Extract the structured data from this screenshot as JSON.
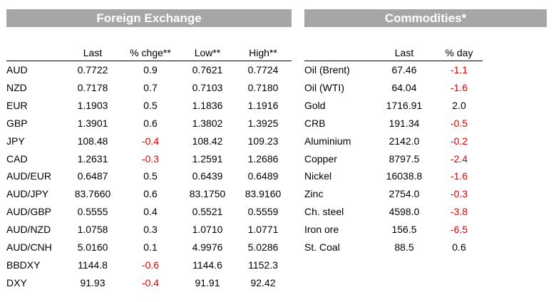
{
  "fx": {
    "title": "Foreign Exchange",
    "headers": [
      "",
      "Last",
      "% chge**",
      "Low**",
      "High**"
    ],
    "rows": [
      {
        "name": "AUD",
        "last": "0.7722",
        "chg": "0.9",
        "low": "0.7621",
        "high": "0.7724"
      },
      {
        "name": "NZD",
        "last": "0.7178",
        "chg": "0.7",
        "low": "0.7103",
        "high": "0.7180"
      },
      {
        "name": "EUR",
        "last": "1.1903",
        "chg": "0.5",
        "low": "1.1836",
        "high": "1.1916"
      },
      {
        "name": "GBP",
        "last": "1.3901",
        "chg": "0.6",
        "low": "1.3802",
        "high": "1.3925"
      },
      {
        "name": "JPY",
        "last": "108.48",
        "chg": "-0.4",
        "low": "108.42",
        "high": "109.23"
      },
      {
        "name": "CAD",
        "last": "1.2631",
        "chg": "-0.3",
        "low": "1.2591",
        "high": "1.2686"
      },
      {
        "name": "AUD/EUR",
        "last": "0.6487",
        "chg": "0.5",
        "low": "0.6439",
        "high": "0.6489"
      },
      {
        "name": "AUD/JPY",
        "last": "83.7660",
        "chg": "0.6",
        "low": "83.1750",
        "high": "83.9160"
      },
      {
        "name": "AUD/GBP",
        "last": "0.5555",
        "chg": "0.4",
        "low": "0.5521",
        "high": "0.5559"
      },
      {
        "name": "AUD/NZD",
        "last": "1.0758",
        "chg": "0.3",
        "low": "1.0710",
        "high": "1.0771"
      },
      {
        "name": "AUD/CNH",
        "last": "5.0160",
        "chg": "0.1",
        "low": "4.9976",
        "high": "5.0286"
      },
      {
        "name": "BBDXY",
        "last": "1144.8",
        "chg": "-0.6",
        "low": "1144.6",
        "high": "1152.3"
      },
      {
        "name": "DXY",
        "last": "91.93",
        "chg": "-0.4",
        "low": "91.91",
        "high": "92.42"
      }
    ]
  },
  "commodities": {
    "title": "Commodities*",
    "headers": [
      "",
      "Last",
      "% day"
    ],
    "rows": [
      {
        "name": "Oil (Brent)",
        "last": "67.46",
        "day": "-1.1"
      },
      {
        "name": "Oil (WTI)",
        "last": "64.04",
        "day": "-1.6"
      },
      {
        "name": "Gold",
        "last": "1716.91",
        "day": "2.0"
      },
      {
        "name": "CRB",
        "last": "191.34",
        "day": "-0.5"
      },
      {
        "name": "Aluminium",
        "last": "2142.0",
        "day": "-0.2"
      },
      {
        "name": "Copper",
        "last": "8797.5",
        "day": "-2.4"
      },
      {
        "name": "Nickel",
        "last": "16038.8",
        "day": "-1.6"
      },
      {
        "name": "Zinc",
        "last": "2754.0",
        "day": "-0.3"
      },
      {
        "name": "Ch. steel",
        "last": "4598.0",
        "day": "-3.8"
      },
      {
        "name": "Iron ore",
        "last": "156.5",
        "day": "-6.5"
      },
      {
        "name": "St. Coal",
        "last": "88.5",
        "day": "0.6"
      }
    ]
  },
  "colors": {
    "header_bg": "#a6a6a6",
    "negative": "#e00000"
  }
}
